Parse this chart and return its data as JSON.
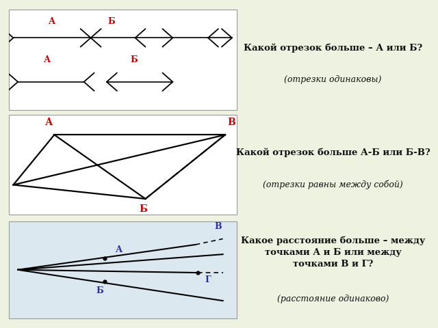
{
  "bg_color": "#eef2e0",
  "panel_color": "#ffffff",
  "panel3_bg": "#dce8f0",
  "text_color": "#111111",
  "label_color_p1p2": "#cc0000",
  "label_color_p3": "#2a2aaa",
  "panel1": {
    "title": "Какой отрезок больше – А или Б?",
    "subtitle": "(отрезки одинаковы)"
  },
  "panel2": {
    "title": "Какой отрезок больше А-Б или Б-В?",
    "subtitle": "(отрезки равны между собой)"
  },
  "panel3": {
    "title": "Какое расстояние больше – между\nточками А и Б или между\nточками В и Г?",
    "subtitle": "(расстояние одинаково)"
  }
}
